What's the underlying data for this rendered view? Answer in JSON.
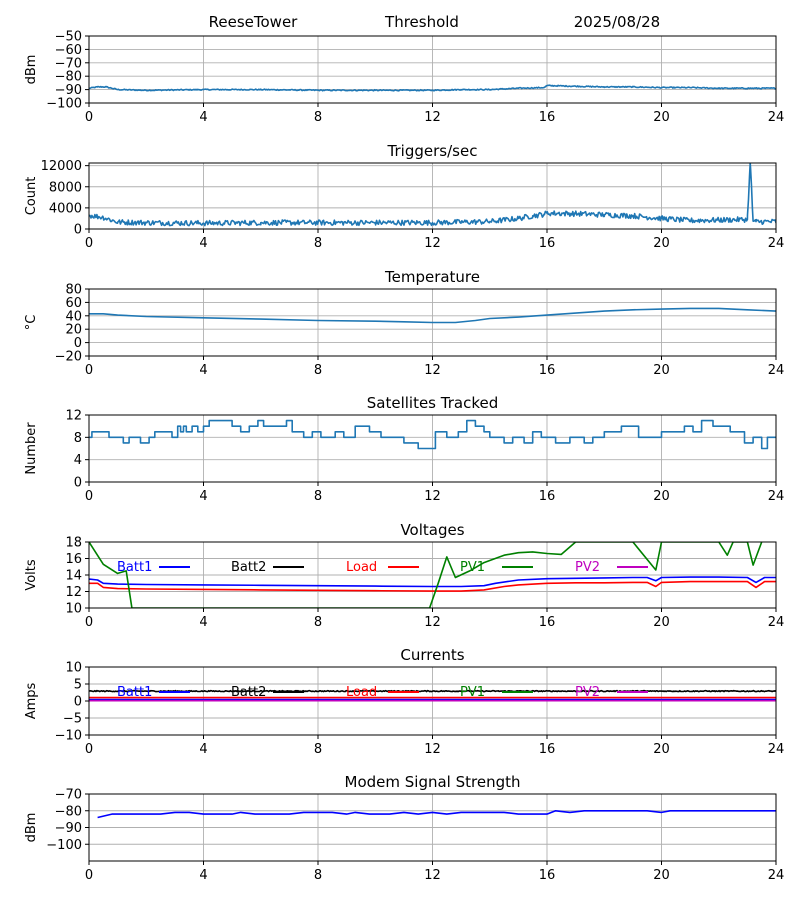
{
  "header": {
    "station": "ReeseTower",
    "title": "Threshold",
    "date": "2025/08/28"
  },
  "chart_data": [
    {
      "id": "threshold",
      "type": "line",
      "title": "",
      "ylabel": "dBm",
      "xlim": [
        0,
        24
      ],
      "ylim": [
        -100,
        -50
      ],
      "xticks": [
        "0",
        "4",
        "8",
        "12",
        "16",
        "20",
        "24"
      ],
      "yticks": [
        "−50",
        "−60",
        "−70",
        "−80",
        "−90",
        "−100"
      ],
      "ytick_values": [
        -50,
        -60,
        -70,
        -80,
        -90,
        -100
      ],
      "grid": true,
      "series": [
        {
          "color": "#1f77b4",
          "noise": 0.4,
          "x": [
            0,
            0.3,
            0.6,
            0.8,
            1,
            2,
            4,
            6,
            8,
            10,
            12,
            13,
            14,
            15,
            15.9,
            16,
            17,
            18,
            19,
            20,
            21,
            22,
            23,
            24
          ],
          "y": [
            -89,
            -88,
            -88,
            -89,
            -90,
            -90.5,
            -90,
            -90,
            -90.5,
            -90.5,
            -90.5,
            -90,
            -90,
            -89,
            -88.5,
            -87,
            -87.5,
            -88,
            -88,
            -88.5,
            -88.5,
            -89,
            -89,
            -89
          ]
        }
      ]
    },
    {
      "id": "triggers",
      "type": "line",
      "title": "Triggers/sec",
      "ylabel": "Count",
      "xlim": [
        0,
        24
      ],
      "ylim": [
        0,
        12500
      ],
      "xticks": [
        "0",
        "4",
        "8",
        "12",
        "16",
        "20",
        "24"
      ],
      "yticks": [
        "0",
        "4000",
        "8000",
        "12000"
      ],
      "ytick_values": [
        0,
        4000,
        8000,
        12000
      ],
      "grid": true,
      "series": [
        {
          "color": "#1f77b4",
          "noise": 500,
          "x": [
            0,
            0.5,
            1,
            2,
            4,
            6,
            8,
            10,
            12,
            13,
            14,
            15,
            15.5,
            15.9,
            16,
            17,
            18,
            19,
            20,
            21,
            22,
            23,
            23.1,
            23.2,
            23.3,
            24
          ],
          "y": [
            2600,
            2200,
            1300,
            1200,
            1100,
            1200,
            1200,
            1200,
            1200,
            1300,
            1400,
            2000,
            2500,
            2800,
            3000,
            2900,
            2700,
            2500,
            2000,
            1600,
            1700,
            1800,
            12500,
            1500,
            1400,
            1400
          ]
        }
      ]
    },
    {
      "id": "temperature",
      "type": "line",
      "title": "Temperature",
      "ylabel": "°C",
      "xlim": [
        0,
        24
      ],
      "ylim": [
        -20,
        80
      ],
      "xticks": [
        "0",
        "4",
        "8",
        "12",
        "16",
        "20",
        "24"
      ],
      "yticks": [
        "−20",
        "0",
        "20",
        "40",
        "60",
        "80"
      ],
      "ytick_values": [
        -20,
        0,
        20,
        40,
        60,
        80
      ],
      "grid": true,
      "series": [
        {
          "color": "#1f77b4",
          "noise": 0,
          "x": [
            0,
            0.5,
            1,
            2,
            4,
            6,
            8,
            10,
            11,
            12,
            12.8,
            13.5,
            14,
            15,
            16,
            17,
            18,
            19,
            20,
            21,
            21.5,
            22,
            23,
            24
          ],
          "y": [
            43,
            43,
            41,
            39,
            37,
            35,
            33,
            32,
            31,
            30,
            30,
            33,
            36,
            38,
            41,
            44,
            47,
            49,
            50,
            51,
            51,
            51,
            49,
            47
          ]
        }
      ]
    },
    {
      "id": "satellites",
      "type": "line",
      "step": true,
      "title": "Satellites Tracked",
      "ylabel": "Number",
      "xlim": [
        0,
        24
      ],
      "ylim": [
        0,
        12
      ],
      "xticks": [
        "0",
        "4",
        "8",
        "12",
        "16",
        "20",
        "24"
      ],
      "yticks": [
        "0",
        "4",
        "8",
        "12"
      ],
      "ytick_values": [
        0,
        4,
        8,
        12
      ],
      "grid": true,
      "series": [
        {
          "color": "#1f77b4",
          "noise": 0,
          "x": [
            0,
            0.1,
            0.7,
            1.2,
            1.4,
            1.8,
            2.1,
            2.2,
            2.3,
            2.8,
            2.9,
            3.1,
            3.2,
            3.3,
            3.4,
            3.6,
            3.8,
            4,
            4.2,
            4.8,
            5,
            5.3,
            5.6,
            5.9,
            6.1,
            6.6,
            6.9,
            7.1,
            7.5,
            7.8,
            8.1,
            8.6,
            8.9,
            9.3,
            9.8,
            10.2,
            10.5,
            11,
            11.5,
            12,
            12.1,
            12.5,
            12.9,
            13.2,
            13.5,
            13.8,
            14,
            14.5,
            14.8,
            15.2,
            15.5,
            15.8,
            16.3,
            16.8,
            17.3,
            17.6,
            18,
            18.3,
            18.6,
            19.2,
            19.6,
            20,
            20.4,
            20.8,
            21.1,
            21.4,
            21.8,
            22.4,
            22.9,
            23.2,
            23.5,
            23.7,
            24
          ],
          "y": [
            8,
            9,
            8,
            7,
            8,
            7,
            8,
            8,
            9,
            9,
            8,
            10,
            9,
            10,
            9,
            10,
            9,
            10,
            11,
            11,
            10,
            9,
            10,
            11,
            10,
            10,
            11,
            9,
            8,
            9,
            8,
            9,
            8,
            10,
            9,
            8,
            8,
            7,
            6,
            6,
            9,
            8,
            9,
            11,
            10,
            9,
            8,
            7,
            8,
            7,
            9,
            8,
            7,
            8,
            7,
            8,
            9,
            9,
            10,
            8,
            8,
            9,
            9,
            10,
            9,
            11,
            10,
            9,
            7,
            8,
            6,
            8,
            8
          ]
        }
      ]
    },
    {
      "id": "voltages",
      "type": "line",
      "title": "Voltages",
      "ylabel": "Volts",
      "xlim": [
        0,
        24
      ],
      "ylim": [
        10,
        18
      ],
      "xticks": [
        "0",
        "4",
        "8",
        "12",
        "16",
        "20",
        "24"
      ],
      "yticks": [
        "10",
        "12",
        "14",
        "16",
        "18"
      ],
      "ytick_values": [
        10,
        12,
        14,
        16,
        18
      ],
      "grid": true,
      "legend": [
        {
          "label": "Batt1",
          "color": "#0000ff"
        },
        {
          "label": "Batt2",
          "color": "#000000"
        },
        {
          "label": "Load",
          "color": "#ff0000"
        },
        {
          "label": "PV1",
          "color": "#008000"
        },
        {
          "label": "PV2",
          "color": "#bf00bf"
        }
      ],
      "series": [
        {
          "name": "Batt1",
          "color": "#0000ff",
          "noise": 0,
          "x": [
            0,
            0.3,
            0.5,
            1,
            2,
            4,
            6,
            8,
            10,
            12,
            13,
            13.8,
            14.2,
            15,
            16,
            17,
            18,
            19,
            19.5,
            19.8,
            20,
            21,
            22,
            23,
            23.3,
            23.6,
            24
          ],
          "y": [
            13.5,
            13.4,
            13.0,
            12.9,
            12.85,
            12.8,
            12.75,
            12.7,
            12.65,
            12.6,
            12.6,
            12.7,
            13.0,
            13.4,
            13.55,
            13.6,
            13.65,
            13.7,
            13.7,
            13.3,
            13.7,
            13.75,
            13.75,
            13.7,
            13.1,
            13.7,
            13.7
          ]
        },
        {
          "name": "Load",
          "color": "#ff0000",
          "noise": 0,
          "x": [
            0,
            0.3,
            0.5,
            1,
            2,
            4,
            6,
            8,
            10,
            12,
            13,
            13.8,
            14.5,
            15,
            16,
            17,
            18,
            19,
            19.5,
            19.8,
            20,
            21,
            22,
            23,
            23.3,
            23.6,
            24
          ],
          "y": [
            13.0,
            13.0,
            12.5,
            12.35,
            12.3,
            12.25,
            12.2,
            12.15,
            12.1,
            12.05,
            12.05,
            12.2,
            12.6,
            12.8,
            13.0,
            13.05,
            13.05,
            13.1,
            13.1,
            12.6,
            13.1,
            13.2,
            13.2,
            13.2,
            12.5,
            13.2,
            13.2
          ]
        },
        {
          "name": "PV1",
          "color": "#008000",
          "noise": 0,
          "x": [
            0,
            0.5,
            1,
            1.3,
            1.5,
            11.9,
            12.2,
            12.5,
            12.8,
            13.3,
            13.8,
            14.5,
            15,
            15.5,
            16,
            16.5,
            17,
            18,
            19,
            19.8,
            20,
            21,
            22,
            22.3,
            22.5,
            23,
            23.2,
            23.5
          ],
          "y": [
            18,
            15.3,
            14.2,
            14.5,
            10,
            10,
            13.0,
            16.2,
            13.7,
            14.5,
            15.5,
            16.4,
            16.7,
            16.8,
            16.6,
            16.5,
            18,
            18,
            18,
            14.6,
            18,
            18,
            18,
            16.4,
            18,
            18,
            15.2,
            18
          ]
        }
      ]
    },
    {
      "id": "currents",
      "type": "line",
      "title": "Currents",
      "ylabel": "Amps",
      "xlim": [
        0,
        24
      ],
      "ylim": [
        -10,
        10
      ],
      "xticks": [
        "0",
        "4",
        "8",
        "12",
        "16",
        "20",
        "24"
      ],
      "yticks": [
        "−10",
        "−5",
        "0",
        "5",
        "10"
      ],
      "ytick_values": [
        -10,
        -5,
        0,
        5,
        10
      ],
      "grid": true,
      "legend": [
        {
          "label": "Batt1",
          "color": "#0000ff"
        },
        {
          "label": "Batt2",
          "color": "#000000"
        },
        {
          "label": "Load",
          "color": "#ff0000"
        },
        {
          "label": "PV1",
          "color": "#008000"
        },
        {
          "label": "PV2",
          "color": "#bf00bf"
        }
      ],
      "series": [
        {
          "name": "Batt2",
          "color": "#000000",
          "noise": 0.15,
          "x": [
            0,
            24
          ],
          "y": [
            2.9,
            2.9
          ]
        },
        {
          "name": "Load",
          "color": "#ff0000",
          "noise": 0,
          "x": [
            0,
            24
          ],
          "y": [
            1.0,
            1.0
          ]
        },
        {
          "name": "Batt1",
          "color": "#0000ff",
          "noise": 0,
          "x": [
            0,
            24
          ],
          "y": [
            0.4,
            0.4
          ]
        },
        {
          "name": "PV2",
          "color": "#bf00bf",
          "noise": 0,
          "x": [
            0,
            24
          ],
          "y": [
            0.1,
            0.1
          ]
        }
      ]
    },
    {
      "id": "modem",
      "type": "line",
      "title": "Modem Signal Strength",
      "ylabel": "dBm",
      "xlim": [
        0,
        24
      ],
      "ylim": [
        -110,
        -70
      ],
      "xticks": [
        "0",
        "4",
        "8",
        "12",
        "16",
        "20",
        "24"
      ],
      "yticks": [
        "−70",
        "−80",
        "−90",
        "−100"
      ],
      "ytick_values": [
        -70,
        -80,
        -90,
        -100
      ],
      "grid": true,
      "series": [
        {
          "color": "#0000ff",
          "noise": 0,
          "x": [
            0.3,
            0.8,
            1.5,
            2.5,
            3,
            3.5,
            4,
            4.5,
            5,
            5.3,
            5.8,
            6.5,
            7,
            7.5,
            8,
            8.5,
            9,
            9.3,
            9.8,
            10.5,
            11,
            11.5,
            12,
            12.5,
            13,
            13.5,
            14,
            14.5,
            15,
            15.5,
            16,
            16.3,
            16.8,
            17.3,
            18,
            19,
            19.5,
            20,
            20.3,
            21,
            22,
            23,
            24
          ],
          "y": [
            -84,
            -82,
            -82,
            -82,
            -81,
            -81,
            -82,
            -82,
            -82,
            -81,
            -82,
            -82,
            -82,
            -81,
            -81,
            -81,
            -82,
            -81,
            -82,
            -82,
            -81,
            -82,
            -81,
            -82,
            -81,
            -81,
            -81,
            -81,
            -82,
            -82,
            -82,
            -80,
            -81,
            -80,
            -80,
            -80,
            -80,
            -81,
            -80,
            -80,
            -80,
            -80,
            -80
          ]
        }
      ]
    }
  ]
}
